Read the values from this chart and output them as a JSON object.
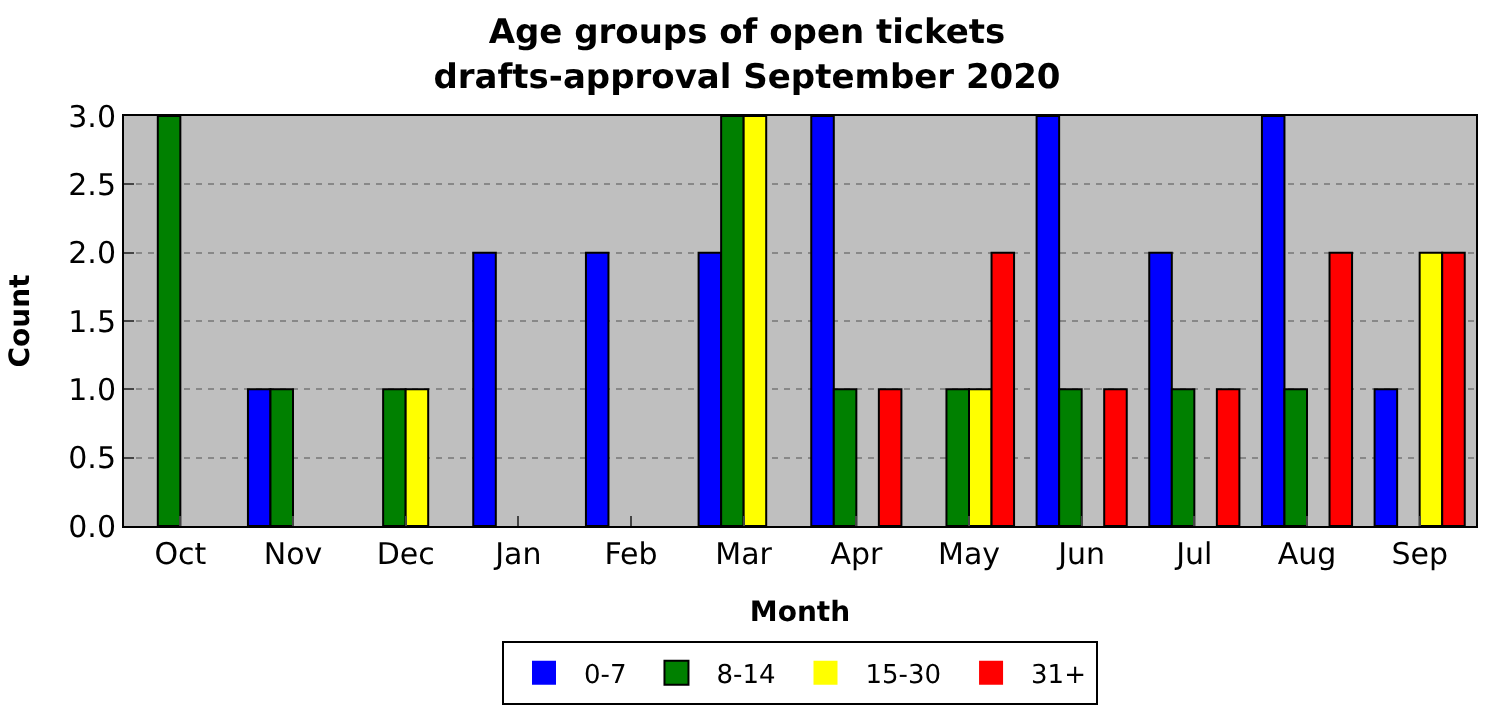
{
  "chart_data": {
    "type": "bar",
    "title": "Age groups of open tickets\ndrafts-approval September 2020",
    "xlabel": "Month",
    "ylabel": "Count",
    "categories": [
      "Oct",
      "Nov",
      "Dec",
      "Jan",
      "Feb",
      "Mar",
      "Apr",
      "May",
      "Jun",
      "Jul",
      "Aug",
      "Sep"
    ],
    "series": [
      {
        "name": "0-7",
        "color": "#0000ff",
        "values": [
          0,
          1,
          0,
          2,
          2,
          2,
          3,
          0,
          3,
          2,
          3,
          1
        ]
      },
      {
        "name": "8-14",
        "color": "#008000",
        "values": [
          3,
          1,
          1,
          0,
          0,
          3,
          1,
          1,
          1,
          1,
          1,
          0
        ]
      },
      {
        "name": "15-30",
        "color": "#ffff00",
        "values": [
          0,
          0,
          1,
          0,
          0,
          3,
          0,
          1,
          0,
          0,
          0,
          2
        ]
      },
      {
        "name": "31+",
        "color": "#ff0000",
        "values": [
          0,
          0,
          0,
          0,
          0,
          0,
          1,
          2,
          1,
          1,
          2,
          2
        ]
      }
    ],
    "ylim": [
      0,
      3
    ],
    "yticks": [
      {
        "value": 0,
        "label": "0.0"
      },
      {
        "value": 0.5,
        "label": "0.5"
      },
      {
        "value": 1,
        "label": "1.0"
      },
      {
        "value": 1.5,
        "label": "1.5"
      },
      {
        "value": 2,
        "label": "2.0"
      },
      {
        "value": 2.5,
        "label": "2.5"
      },
      {
        "value": 3,
        "label": "3.0"
      }
    ],
    "grid": "y",
    "legend": "bottom"
  }
}
